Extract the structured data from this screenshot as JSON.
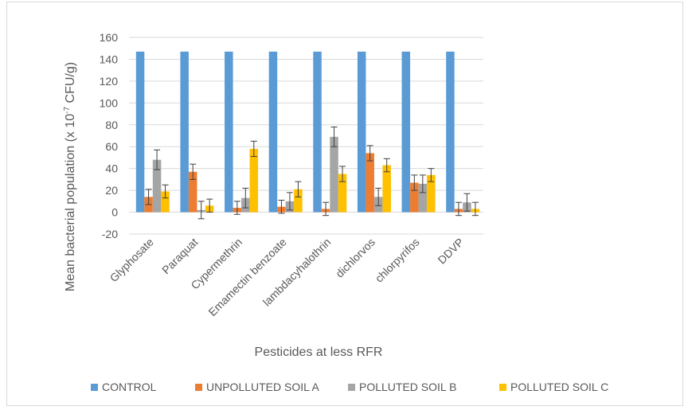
{
  "chart_data": {
    "type": "bar",
    "title": "",
    "xlabel": "Pesticides at less RFR",
    "ylabel_main": "Mean bacterial population (x 10",
    "ylabel_exp": "-7",
    "ylabel_unit": " CFU/g)",
    "ylim": [
      -20,
      160
    ],
    "yticks": [
      -20,
      0,
      20,
      40,
      60,
      80,
      100,
      120,
      140,
      160
    ],
    "grid": true,
    "legend_position": "bottom",
    "categories": [
      "Glyphosate",
      "Paraquat",
      "Cypermethrin",
      "Emamectin benzoate",
      "lambdacyhalothrin",
      "dichlorvos",
      "chlorpyrifos",
      "DDVP"
    ],
    "series": [
      {
        "name": "CONTROL",
        "color": "#5B9BD5",
        "values": [
          147,
          147,
          147,
          147,
          147,
          147,
          147,
          147
        ],
        "errors": [
          0,
          0,
          0,
          0,
          0,
          0,
          0,
          0
        ]
      },
      {
        "name": "UNPOLLUTED SOIL A",
        "color": "#ED7D31",
        "values": [
          14,
          37,
          4,
          5,
          3,
          54,
          27,
          3
        ],
        "errors": [
          7,
          7,
          6,
          6,
          6,
          7,
          7,
          6
        ]
      },
      {
        "name": "POLLUTED SOIL B",
        "color": "#A5A5A5",
        "values": [
          48,
          2,
          13,
          10,
          69,
          14,
          26,
          9
        ],
        "errors": [
          9,
          8,
          9,
          8,
          9,
          8,
          8,
          8
        ]
      },
      {
        "name": "POLLUTED SOIL C",
        "color": "#FFC000",
        "values": [
          19,
          6,
          58,
          21,
          35,
          43,
          34,
          3
        ],
        "errors": [
          6,
          6,
          7,
          7,
          7,
          6,
          6,
          6
        ]
      }
    ]
  }
}
